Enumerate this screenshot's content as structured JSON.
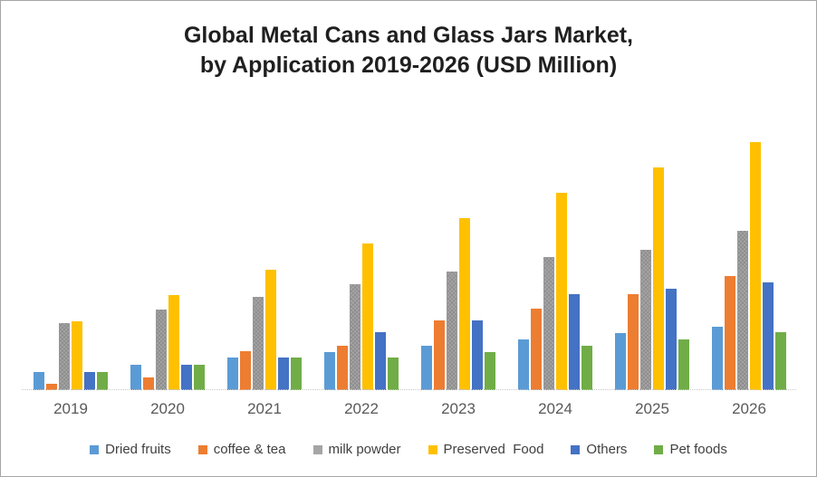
{
  "header": {
    "title_line1": "Global Metal Cans and Glass Jars Market,",
    "title_line2": "by Application 2019-2026 (USD Million)"
  },
  "chart_data": {
    "type": "bar",
    "title": "Global Metal Cans and Glass Jars Market, by Application 2019-2026 (USD Million)",
    "xlabel": "",
    "ylabel": "",
    "categories": [
      "2019",
      "2020",
      "2021",
      "2022",
      "2023",
      "2024",
      "2025",
      "2026"
    ],
    "series": [
      {
        "name": "Dried fruits",
        "color": "#5B9BD5",
        "pattern": false,
        "values": [
          20,
          28,
          36,
          42,
          49,
          56,
          63,
          70
        ]
      },
      {
        "name": "coffee & tea",
        "color": "#ED7D31",
        "pattern": false,
        "values": [
          7,
          14,
          43,
          49,
          77,
          90,
          106,
          126
        ]
      },
      {
        "name": "milk powder",
        "color": "#A5A5A5",
        "pattern": true,
        "values": [
          74,
          89,
          103,
          117,
          131,
          147,
          155,
          176
        ]
      },
      {
        "name": "Preserved  Food",
        "color": "#FFC000",
        "pattern": false,
        "values": [
          76,
          105,
          133,
          162,
          190,
          218,
          246,
          274
        ]
      },
      {
        "name": "Others",
        "color": "#4472C4",
        "pattern": false,
        "values": [
          20,
          28,
          36,
          64,
          77,
          106,
          112,
          119
        ]
      },
      {
        "name": "Pet foods",
        "color": "#70AD47",
        "pattern": false,
        "values": [
          20,
          28,
          36,
          36,
          42,
          49,
          56,
          64
        ]
      }
    ],
    "ylim": [
      0,
      290
    ],
    "value_note": "relative bar heights; chart displays no value axis, gridlines or data labels",
    "y_axis_visible": false,
    "gridlines": false,
    "legend_position": "bottom",
    "colors": {
      "axis_line": "#C9C9C9",
      "tick_label": "#595959",
      "legend_text": "#404040",
      "title_text": "#1F1F1F",
      "frame_border": "#A6A6A6",
      "background": "#FFFFFF"
    }
  }
}
